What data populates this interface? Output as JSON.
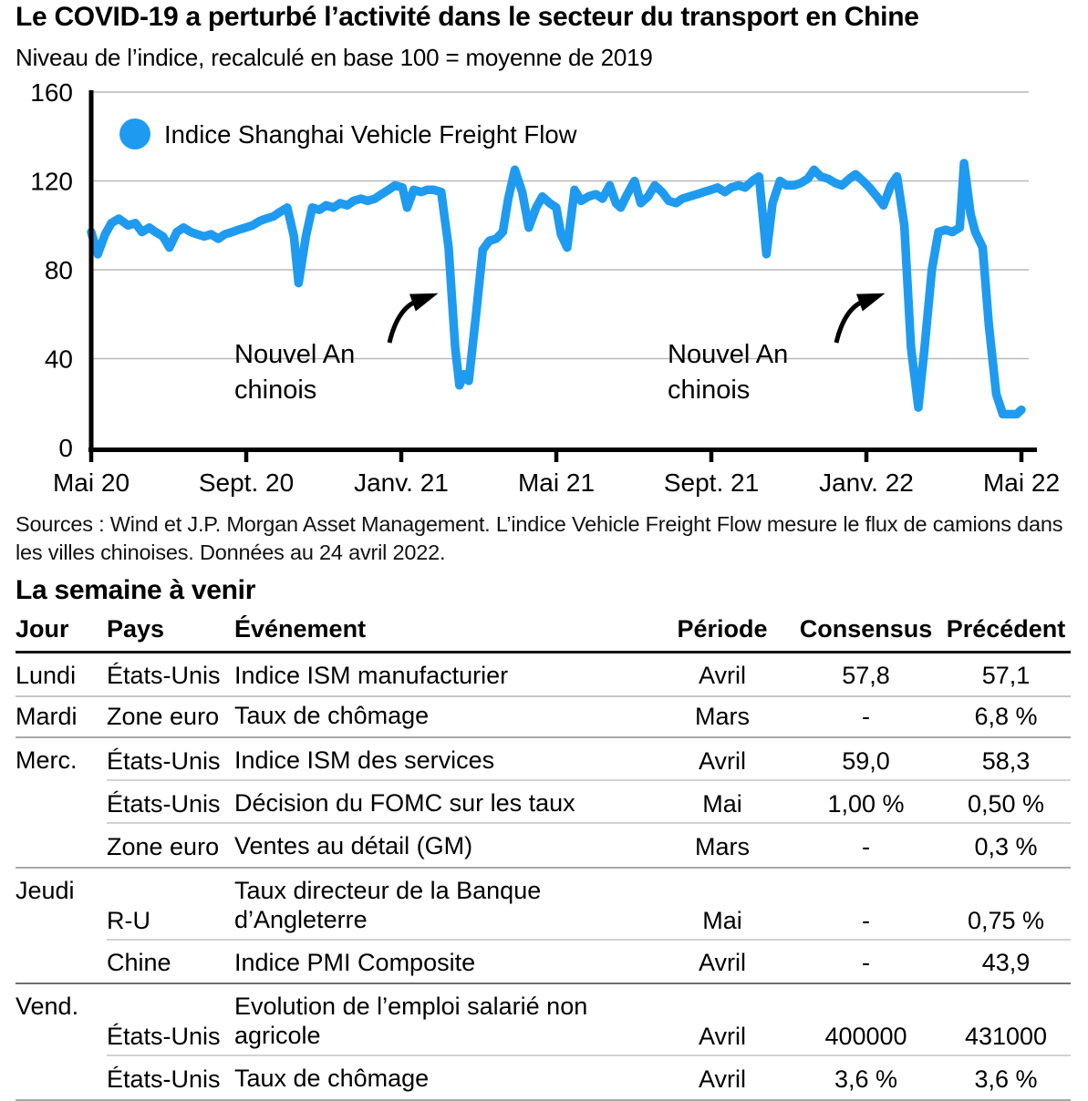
{
  "chart_data": {
    "type": "line",
    "title": "Le COVID-19 a perturbé l’activité dans le secteur du transport en Chine",
    "subtitle": "Niveau de l’indice, recalculé en base 100 = moyenne de 2019",
    "xlabel": "",
    "ylabel": "",
    "ylim": [
      0,
      160
    ],
    "y_ticks": [
      0,
      40,
      80,
      120,
      160
    ],
    "x_range_months": [
      0,
      24
    ],
    "x_ticks": [
      "Mai 20",
      "Sept. 20",
      "Janv. 21",
      "Mai 21",
      "Sept. 21",
      "Janv. 22",
      "Mai 22"
    ],
    "grid": "horizontal",
    "legend_position": "top-left",
    "line_color": "#1e9bf0",
    "series": [
      {
        "name": "Indice Shanghai Vehicle Freight Flow",
        "color": "#1e9bf0",
        "points": [
          [
            0,
            97
          ],
          [
            0.17,
            87
          ],
          [
            0.36,
            96
          ],
          [
            0.52,
            101
          ],
          [
            0.71,
            103
          ],
          [
            0.95,
            100
          ],
          [
            1.14,
            101
          ],
          [
            1.31,
            97
          ],
          [
            1.5,
            99
          ],
          [
            1.66,
            97
          ],
          [
            1.85,
            95
          ],
          [
            2.02,
            90
          ],
          [
            2.21,
            97
          ],
          [
            2.38,
            99
          ],
          [
            2.57,
            97
          ],
          [
            2.73,
            96
          ],
          [
            2.92,
            95
          ],
          [
            3.09,
            96
          ],
          [
            3.28,
            94
          ],
          [
            3.45,
            96
          ],
          [
            3.64,
            97
          ],
          [
            3.8,
            98
          ],
          [
            3.99,
            99
          ],
          [
            4.16,
            100
          ],
          [
            4.35,
            102
          ],
          [
            4.51,
            103
          ],
          [
            4.7,
            104
          ],
          [
            4.87,
            106
          ],
          [
            5.06,
            108
          ],
          [
            5.23,
            95
          ],
          [
            5.35,
            74
          ],
          [
            5.54,
            95
          ],
          [
            5.7,
            108
          ],
          [
            5.89,
            107
          ],
          [
            6.06,
            109
          ],
          [
            6.25,
            108
          ],
          [
            6.42,
            110
          ],
          [
            6.61,
            109
          ],
          [
            6.77,
            111
          ],
          [
            6.96,
            112
          ],
          [
            7.13,
            111
          ],
          [
            7.32,
            112
          ],
          [
            7.49,
            114
          ],
          [
            7.67,
            116
          ],
          [
            7.84,
            118
          ],
          [
            8.03,
            117
          ],
          [
            8.15,
            108
          ],
          [
            8.32,
            116
          ],
          [
            8.51,
            115
          ],
          [
            8.67,
            116
          ],
          [
            8.84,
            116
          ],
          [
            9.03,
            115
          ],
          [
            9.22,
            90
          ],
          [
            9.39,
            45
          ],
          [
            9.5,
            28
          ],
          [
            9.62,
            33
          ],
          [
            9.74,
            30
          ],
          [
            9.93,
            60
          ],
          [
            10.1,
            89
          ],
          [
            10.27,
            93
          ],
          [
            10.45,
            94
          ],
          [
            10.62,
            97
          ],
          [
            10.76,
            112
          ],
          [
            10.93,
            125
          ],
          [
            11.12,
            115
          ],
          [
            11.29,
            99
          ],
          [
            11.48,
            108
          ],
          [
            11.64,
            113
          ],
          [
            11.83,
            110
          ],
          [
            12,
            108
          ],
          [
            12.12,
            96
          ],
          [
            12.28,
            90
          ],
          [
            12.47,
            116
          ],
          [
            12.64,
            111
          ],
          [
            12.83,
            113
          ],
          [
            13.02,
            114
          ],
          [
            13.19,
            112
          ],
          [
            13.38,
            118
          ],
          [
            13.54,
            110
          ],
          [
            13.66,
            108
          ],
          [
            13.83,
            114
          ],
          [
            14.02,
            120
          ],
          [
            14.18,
            110
          ],
          [
            14.37,
            113
          ],
          [
            14.54,
            118
          ],
          [
            14.73,
            115
          ],
          [
            14.9,
            111
          ],
          [
            15.09,
            110
          ],
          [
            15.25,
            112
          ],
          [
            15.44,
            113
          ],
          [
            15.63,
            114
          ],
          [
            15.8,
            115
          ],
          [
            15.99,
            116
          ],
          [
            16.16,
            117
          ],
          [
            16.35,
            115
          ],
          [
            16.51,
            117
          ],
          [
            16.7,
            118
          ],
          [
            16.87,
            117
          ],
          [
            17.06,
            120
          ],
          [
            17.23,
            122
          ],
          [
            17.42,
            87
          ],
          [
            17.58,
            110
          ],
          [
            17.77,
            120
          ],
          [
            17.94,
            118
          ],
          [
            18.13,
            118
          ],
          [
            18.3,
            119
          ],
          [
            18.49,
            121
          ],
          [
            18.65,
            125
          ],
          [
            18.82,
            122
          ],
          [
            19.01,
            121
          ],
          [
            19.2,
            119
          ],
          [
            19.37,
            118
          ],
          [
            19.56,
            121
          ],
          [
            19.72,
            123
          ],
          [
            19.91,
            120
          ],
          [
            20.08,
            117
          ],
          [
            20.27,
            113
          ],
          [
            20.44,
            109
          ],
          [
            20.63,
            118
          ],
          [
            20.79,
            122
          ],
          [
            20.98,
            100
          ],
          [
            21.15,
            45
          ],
          [
            21.34,
            18
          ],
          [
            21.5,
            45
          ],
          [
            21.69,
            80
          ],
          [
            21.86,
            97
          ],
          [
            22.05,
            98
          ],
          [
            22.22,
            97
          ],
          [
            22.41,
            99
          ],
          [
            22.52,
            128
          ],
          [
            22.69,
            105
          ],
          [
            22.81,
            97
          ],
          [
            23,
            90
          ],
          [
            23.16,
            55
          ],
          [
            23.35,
            24
          ],
          [
            23.52,
            15
          ],
          [
            23.71,
            15
          ],
          [
            23.88,
            15
          ],
          [
            24,
            17
          ]
        ]
      }
    ],
    "annotations": [
      {
        "lines": [
          "Nouvel An",
          "chinois"
        ]
      },
      {
        "lines": [
          "Nouvel An",
          "chinois"
        ]
      }
    ]
  },
  "sources": "Sources : Wind et J.P. Morgan Asset Management. L’indice Vehicle Freight Flow mesure le flux de camions dans les villes chinoises. Données au 24 avril 2022.",
  "week_ahead": {
    "heading": "La semaine à venir",
    "columns": [
      "Jour",
      "Pays",
      "Événement",
      "Période",
      "Consensus",
      "Précédent"
    ],
    "rows": [
      {
        "day": "Lundi",
        "country": "États-Unis",
        "event_lines": [
          "Indice ISM manufacturier"
        ],
        "period": "Avril",
        "consensus": "57,8",
        "previous": "57,1"
      },
      {
        "day": "Mardi",
        "country": "Zone euro",
        "event_lines": [
          "Taux de chômage"
        ],
        "period": "Mars",
        "consensus": "-",
        "previous": "6,8 %"
      },
      {
        "day": "Merc.",
        "country": "États-Unis",
        "event_lines": [
          "Indice ISM des services"
        ],
        "period": "Avril",
        "consensus": "59,0",
        "previous": "58,3"
      },
      {
        "day": "",
        "country": "États-Unis",
        "event_lines": [
          "Décision du FOMC sur les taux"
        ],
        "period": "Mai",
        "consensus": "1,00 %",
        "previous": "0,50 %"
      },
      {
        "day": "",
        "country": "Zone euro",
        "event_lines": [
          "Ventes au détail (GM)"
        ],
        "period": "Mars",
        "consensus": "-",
        "previous": "0,3 %"
      },
      {
        "day": "Jeudi",
        "country": "R-U",
        "event_lines": [
          "Taux directeur de la Banque",
          "d’Angleterre"
        ],
        "period": "Mai",
        "consensus": "-",
        "previous": "0,75 %"
      },
      {
        "day": "",
        "country": "Chine",
        "event_lines": [
          "Indice PMI Composite"
        ],
        "period": "Avril",
        "consensus": "-",
        "previous": "43,9"
      },
      {
        "day": "Vend.",
        "country": "États-Unis",
        "event_lines": [
          "Evolution de l’emploi salarié non",
          "agricole"
        ],
        "period": "Avril",
        "consensus": "400000",
        "previous": "431000"
      },
      {
        "day": "",
        "country": "États-Unis",
        "event_lines": [
          "Taux de chômage"
        ],
        "period": "Avril",
        "consensus": "3,6 %",
        "previous": "3,6 %"
      }
    ]
  }
}
